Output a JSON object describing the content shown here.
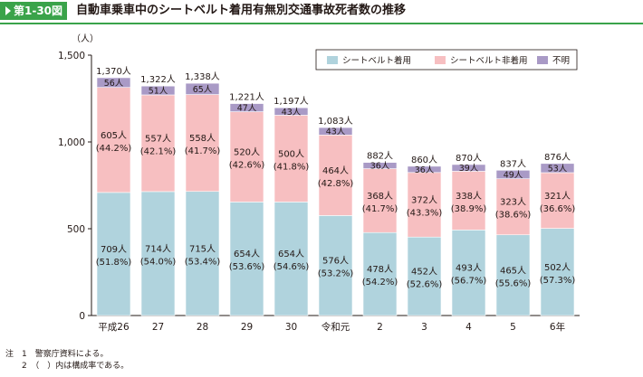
{
  "figure": {
    "number": "第1-30図",
    "title": "自動車乗車中のシートベルト着用有無別交通事故死者数の推移"
  },
  "notes": [
    "注　1　警察庁資料による。",
    "　　2　（　）内は構成率である。"
  ],
  "colors": {
    "accent": "#3aa34a",
    "worn": "#b0d3dd",
    "not_worn": "#f7bfc1",
    "unknown": "#a99ac6"
  },
  "chart_data": {
    "type": "bar",
    "stacked": true,
    "ylabel": "（人）",
    "ylim": [
      0,
      1500
    ],
    "yticks": [
      "0",
      "500",
      "1,000",
      "1,500"
    ],
    "ytick_values": [
      0,
      500,
      1000,
      1500
    ],
    "categories": [
      "平成26",
      "27",
      "28",
      "29",
      "30",
      "令和元",
      "2",
      "3",
      "4",
      "5",
      "6年"
    ],
    "totals": [
      "1,370人",
      "1,322人",
      "1,338人",
      "1,221人",
      "1,197人",
      "1,083人",
      "882人",
      "860人",
      "870人",
      "837人",
      "876人"
    ],
    "legend_position": "top-right",
    "series": [
      {
        "name": "シートベルト着用",
        "color": "#b0d3dd",
        "values": [
          709,
          714,
          715,
          654,
          654,
          576,
          478,
          452,
          493,
          465,
          502
        ],
        "labels": [
          "709人",
          "714人",
          "715人",
          "654人",
          "654人",
          "576人",
          "478人",
          "452人",
          "493人",
          "465人",
          "502人"
        ],
        "shares": [
          "(51.8%)",
          "(54.0%)",
          "(53.4%)",
          "(53.6%)",
          "(54.6%)",
          "(53.2%)",
          "(54.2%)",
          "(52.6%)",
          "(56.7%)",
          "(55.6%)",
          "(57.3%)"
        ]
      },
      {
        "name": "シートベルト非着用",
        "color": "#f7bfc1",
        "values": [
          605,
          557,
          558,
          520,
          500,
          464,
          368,
          372,
          338,
          323,
          321
        ],
        "labels": [
          "605人",
          "557人",
          "558人",
          "520人",
          "500人",
          "464人",
          "368人",
          "372人",
          "338人",
          "323人",
          "321人"
        ],
        "shares": [
          "(44.2%)",
          "(42.1%)",
          "(41.7%)",
          "(42.6%)",
          "(41.8%)",
          "(42.8%)",
          "(41.7%)",
          "(43.3%)",
          "(38.9%)",
          "(38.6%)",
          "(36.6%)"
        ]
      },
      {
        "name": "不明",
        "color": "#a99ac6",
        "values": [
          56,
          51,
          65,
          47,
          43,
          43,
          36,
          36,
          39,
          49,
          53
        ],
        "labels": [
          "56人",
          "51人",
          "65人",
          "47人",
          "43人",
          "43人",
          "36人",
          "36人",
          "39人",
          "49人",
          "53人"
        ]
      }
    ]
  }
}
